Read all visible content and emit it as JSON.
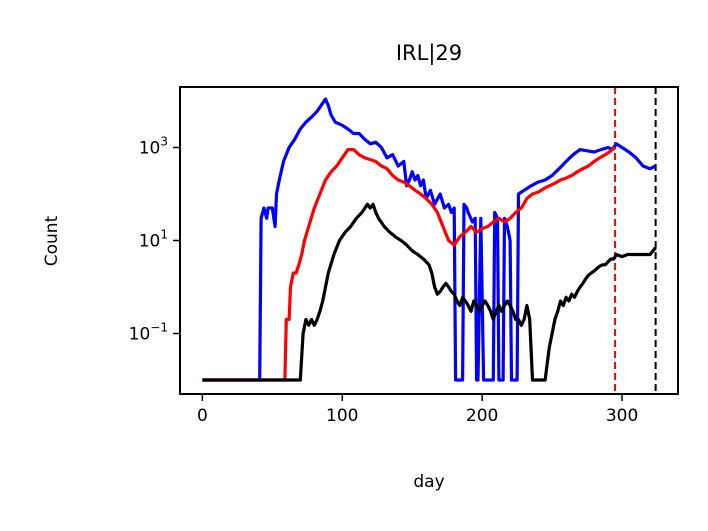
{
  "chart_data": {
    "type": "line",
    "title": "IRL|29",
    "xlabel": "day",
    "ylabel": "Count",
    "x_scale": "linear",
    "y_scale": "log",
    "xlim": [
      -16,
      340
    ],
    "ylim": [
      0.005,
      20000
    ],
    "x_ticks": [
      0,
      100,
      200,
      300
    ],
    "y_ticks": [
      {
        "value": 1000,
        "base": "10",
        "exp": "3"
      },
      {
        "value": 10,
        "base": "10",
        "exp": "1"
      },
      {
        "value": 0.1,
        "base": "10",
        "exp": "−1"
      }
    ],
    "grid": false,
    "vlines": [
      {
        "x": 295,
        "color": "#ff0000",
        "style": "dashed"
      },
      {
        "x": 324,
        "color": "#000000",
        "style": "dashed"
      }
    ],
    "series": [
      {
        "color": "#0000ff",
        "points": [
          [
            0,
            0.01
          ],
          [
            41,
            0.01
          ],
          [
            42,
            30
          ],
          [
            44,
            50
          ],
          [
            46,
            30
          ],
          [
            47,
            50
          ],
          [
            50,
            50
          ],
          [
            52,
            20
          ],
          [
            53,
            100
          ],
          [
            55,
            200
          ],
          [
            58,
            500
          ],
          [
            62,
            1000
          ],
          [
            66,
            1500
          ],
          [
            70,
            2500
          ],
          [
            74,
            3500
          ],
          [
            78,
            4500
          ],
          [
            82,
            6000
          ],
          [
            86,
            9000
          ],
          [
            88,
            11000
          ],
          [
            90,
            8000
          ],
          [
            92,
            5000
          ],
          [
            95,
            3500
          ],
          [
            100,
            3000
          ],
          [
            104,
            2500
          ],
          [
            108,
            2000
          ],
          [
            112,
            2000
          ],
          [
            116,
            1500
          ],
          [
            120,
            1200
          ],
          [
            124,
            1300
          ],
          [
            128,
            1000
          ],
          [
            132,
            600
          ],
          [
            136,
            700
          ],
          [
            140,
            400
          ],
          [
            144,
            500
          ],
          [
            146,
            150
          ],
          [
            148,
            200
          ],
          [
            150,
            300
          ],
          [
            152,
            200
          ],
          [
            154,
            250
          ],
          [
            156,
            150
          ],
          [
            158,
            200
          ],
          [
            160,
            80
          ],
          [
            163,
            120
          ],
          [
            166,
            60
          ],
          [
            170,
            100
          ],
          [
            173,
            50
          ],
          [
            176,
            60
          ],
          [
            178,
            40
          ],
          [
            180,
            50
          ],
          [
            181,
            0.01
          ],
          [
            186,
            0.01
          ],
          [
            187,
            60
          ],
          [
            189,
            50
          ],
          [
            190,
            40
          ],
          [
            193,
            25
          ],
          [
            195,
            30
          ],
          [
            196,
            0.01
          ],
          [
            197,
            0.01
          ],
          [
            199,
            30
          ],
          [
            201,
            0.01
          ],
          [
            208,
            0.01
          ],
          [
            209,
            40
          ],
          [
            211,
            30
          ],
          [
            212,
            0.01
          ],
          [
            215,
            0.01
          ],
          [
            216,
            30
          ],
          [
            218,
            20
          ],
          [
            220,
            10
          ],
          [
            221,
            0.01
          ],
          [
            225,
            0.01
          ],
          [
            226,
            100
          ],
          [
            230,
            120
          ],
          [
            235,
            150
          ],
          [
            240,
            180
          ],
          [
            245,
            200
          ],
          [
            250,
            250
          ],
          [
            255,
            350
          ],
          [
            260,
            500
          ],
          [
            265,
            700
          ],
          [
            270,
            900
          ],
          [
            275,
            850
          ],
          [
            280,
            800
          ],
          [
            285,
            900
          ],
          [
            290,
            1000
          ],
          [
            293,
            900
          ],
          [
            296,
            1200
          ],
          [
            300,
            1000
          ],
          [
            305,
            800
          ],
          [
            310,
            600
          ],
          [
            315,
            400
          ],
          [
            320,
            350
          ],
          [
            324,
            400
          ]
        ]
      },
      {
        "color": "#ff0000",
        "points": [
          [
            0,
            0.01
          ],
          [
            59,
            0.01
          ],
          [
            60,
            0.2
          ],
          [
            62,
            0.2
          ],
          [
            63,
            1
          ],
          [
            65,
            2
          ],
          [
            67,
            2
          ],
          [
            69,
            3
          ],
          [
            71,
            5
          ],
          [
            73,
            10
          ],
          [
            76,
            20
          ],
          [
            80,
            50
          ],
          [
            84,
            100
          ],
          [
            88,
            200
          ],
          [
            92,
            300
          ],
          [
            96,
            400
          ],
          [
            100,
            600
          ],
          [
            104,
            900
          ],
          [
            108,
            900
          ],
          [
            112,
            700
          ],
          [
            116,
            600
          ],
          [
            120,
            550
          ],
          [
            124,
            500
          ],
          [
            128,
            400
          ],
          [
            132,
            350
          ],
          [
            136,
            250
          ],
          [
            140,
            200
          ],
          [
            144,
            180
          ],
          [
            148,
            150
          ],
          [
            152,
            120
          ],
          [
            156,
            100
          ],
          [
            160,
            80
          ],
          [
            164,
            60
          ],
          [
            168,
            40
          ],
          [
            172,
            20
          ],
          [
            176,
            10
          ],
          [
            180,
            8
          ],
          [
            184,
            12
          ],
          [
            188,
            15
          ],
          [
            192,
            20
          ],
          [
            196,
            15
          ],
          [
            200,
            18
          ],
          [
            204,
            20
          ],
          [
            208,
            25
          ],
          [
            212,
            30
          ],
          [
            216,
            25
          ],
          [
            220,
            30
          ],
          [
            224,
            40
          ],
          [
            228,
            50
          ],
          [
            232,
            80
          ],
          [
            236,
            100
          ],
          [
            240,
            110
          ],
          [
            244,
            130
          ],
          [
            248,
            150
          ],
          [
            252,
            170
          ],
          [
            256,
            200
          ],
          [
            260,
            220
          ],
          [
            264,
            250
          ],
          [
            268,
            300
          ],
          [
            272,
            350
          ],
          [
            276,
            400
          ],
          [
            280,
            500
          ],
          [
            284,
            600
          ],
          [
            288,
            700
          ],
          [
            292,
            850
          ],
          [
            295,
            1000
          ]
        ]
      },
      {
        "color": "#000000",
        "points": [
          [
            0,
            0.01
          ],
          [
            70,
            0.01
          ],
          [
            72,
            0.1
          ],
          [
            74,
            0.2
          ],
          [
            76,
            0.15
          ],
          [
            78,
            0.2
          ],
          [
            80,
            0.15
          ],
          [
            82,
            0.2
          ],
          [
            84,
            0.3
          ],
          [
            86,
            0.5
          ],
          [
            88,
            1
          ],
          [
            90,
            2
          ],
          [
            94,
            5
          ],
          [
            98,
            10
          ],
          [
            102,
            15
          ],
          [
            106,
            20
          ],
          [
            110,
            30
          ],
          [
            114,
            40
          ],
          [
            118,
            60
          ],
          [
            120,
            50
          ],
          [
            122,
            60
          ],
          [
            124,
            40
          ],
          [
            126,
            30
          ],
          [
            130,
            20
          ],
          [
            134,
            15
          ],
          [
            138,
            12
          ],
          [
            142,
            10
          ],
          [
            146,
            8
          ],
          [
            150,
            6
          ],
          [
            154,
            5
          ],
          [
            158,
            4
          ],
          [
            162,
            3
          ],
          [
            164,
            2
          ],
          [
            166,
            1
          ],
          [
            168,
            0.7
          ],
          [
            170,
            0.8
          ],
          [
            172,
            1
          ],
          [
            174,
            1.2
          ],
          [
            176,
            1
          ],
          [
            178,
            0.8
          ],
          [
            180,
            0.7
          ],
          [
            182,
            0.5
          ],
          [
            184,
            0.4
          ],
          [
            186,
            0.6
          ],
          [
            188,
            0.5
          ],
          [
            190,
            0.4
          ],
          [
            192,
            0.3
          ],
          [
            194,
            0.5
          ],
          [
            196,
            0.4
          ],
          [
            198,
            0.3
          ],
          [
            200,
            0.4
          ],
          [
            202,
            0.5
          ],
          [
            204,
            0.4
          ],
          [
            206,
            0.3
          ],
          [
            208,
            0.2
          ],
          [
            210,
            0.3
          ],
          [
            212,
            0.4
          ],
          [
            214,
            0.3
          ],
          [
            216,
            0.4
          ],
          [
            218,
            0.5
          ],
          [
            220,
            0.4
          ],
          [
            222,
            0.3
          ],
          [
            224,
            0.2
          ],
          [
            226,
            0.2
          ],
          [
            228,
            0.15
          ],
          [
            230,
            0.2
          ],
          [
            232,
            0.4
          ],
          [
            234,
            0.2
          ],
          [
            236,
            0.01
          ],
          [
            245,
            0.01
          ],
          [
            248,
            0.05
          ],
          [
            250,
            0.1
          ],
          [
            252,
            0.2
          ],
          [
            254,
            0.3
          ],
          [
            256,
            0.5
          ],
          [
            258,
            0.4
          ],
          [
            260,
            0.6
          ],
          [
            262,
            0.5
          ],
          [
            264,
            0.7
          ],
          [
            266,
            0.6
          ],
          [
            268,
            0.8
          ],
          [
            270,
            1
          ],
          [
            272,
            1.2
          ],
          [
            274,
            1.5
          ],
          [
            276,
            1.8
          ],
          [
            278,
            2
          ],
          [
            280,
            2.2
          ],
          [
            282,
            2.5
          ],
          [
            284,
            2.8
          ],
          [
            286,
            3
          ],
          [
            288,
            3
          ],
          [
            290,
            3.5
          ],
          [
            292,
            4
          ],
          [
            294,
            4
          ],
          [
            296,
            5
          ],
          [
            300,
            4.5
          ],
          [
            304,
            5
          ],
          [
            308,
            5
          ],
          [
            312,
            5
          ],
          [
            316,
            5
          ],
          [
            320,
            5
          ],
          [
            324,
            7
          ]
        ]
      }
    ]
  }
}
